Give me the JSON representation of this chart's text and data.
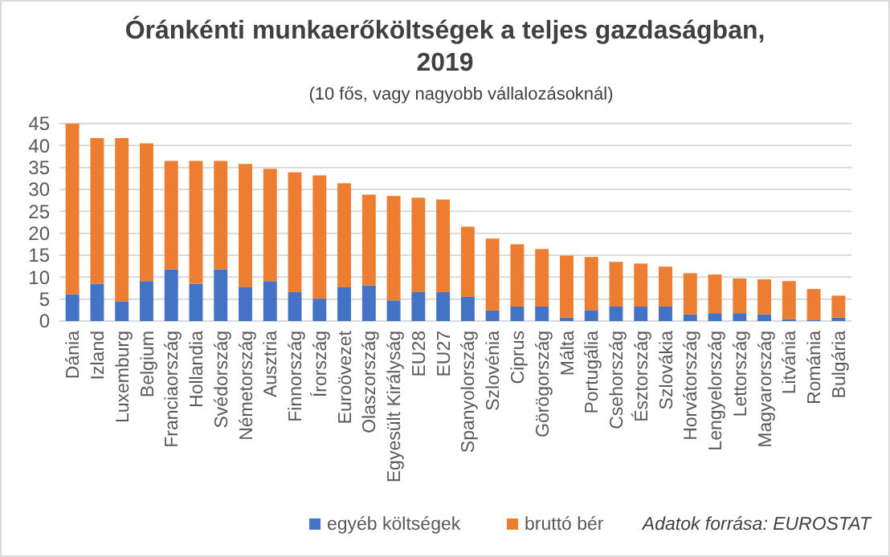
{
  "chart_data": {
    "type": "bar",
    "title": "Óránkénti munkaerőköltségek a teljes gazdaságban, 2019",
    "subtitle": "(10 fős, vagy nagyobb vállalozásoknál)",
    "categories": [
      "Dánia",
      "Izland",
      "Luxemburg",
      "Belgium",
      "Franciaország",
      "Hollandia",
      "Svédország",
      "Németország",
      "Ausztria",
      "Finnország",
      "Írország",
      "Euroövezet",
      "Olaszország",
      "Egyesült Királyság",
      "EU28",
      "EU27",
      "Spanyolország",
      "Szlovénia",
      "Ciprus",
      "Görögország",
      "Málta",
      "Portugália",
      "Csehország",
      "Észtország",
      "Szlovákia",
      "Horvátország",
      "Lengyelország",
      "Lettország",
      "Magyarország",
      "Litvánia",
      "Románia",
      "Bulgária"
    ],
    "series": [
      {
        "name": "egyéb költségek",
        "color": "#4472c4",
        "values": [
          6.1,
          8.5,
          4.5,
          9.1,
          11.8,
          8.5,
          11.8,
          7.7,
          9.1,
          6.6,
          5.1,
          7.7,
          8.1,
          4.7,
          6.6,
          6.6,
          5.5,
          2.4,
          3.3,
          3.3,
          0.8,
          2.5,
          3.3,
          3.3,
          3.3,
          1.5,
          1.8,
          1.8,
          1.5,
          0.4,
          0.3,
          0.8
        ]
      },
      {
        "name": "bruttó bér",
        "color": "#ed7d31",
        "values": [
          38.9,
          33.2,
          37.2,
          31.4,
          24.7,
          28.0,
          24.7,
          28.1,
          25.6,
          27.3,
          28.1,
          23.7,
          20.7,
          23.8,
          21.5,
          21.1,
          16.0,
          16.4,
          14.2,
          13.1,
          14.1,
          12.1,
          10.2,
          9.8,
          9.1,
          9.4,
          8.8,
          7.9,
          8.0,
          8.7,
          7.0,
          5.0
        ]
      }
    ],
    "stacked": true,
    "ylim": [
      0,
      45
    ],
    "yticks": [
      0,
      5,
      10,
      15,
      20,
      25,
      30,
      35,
      40,
      45
    ],
    "grid": "y",
    "legend": "bottom",
    "annotations": [
      "Adatok forrása: EUROSTAT"
    ]
  }
}
